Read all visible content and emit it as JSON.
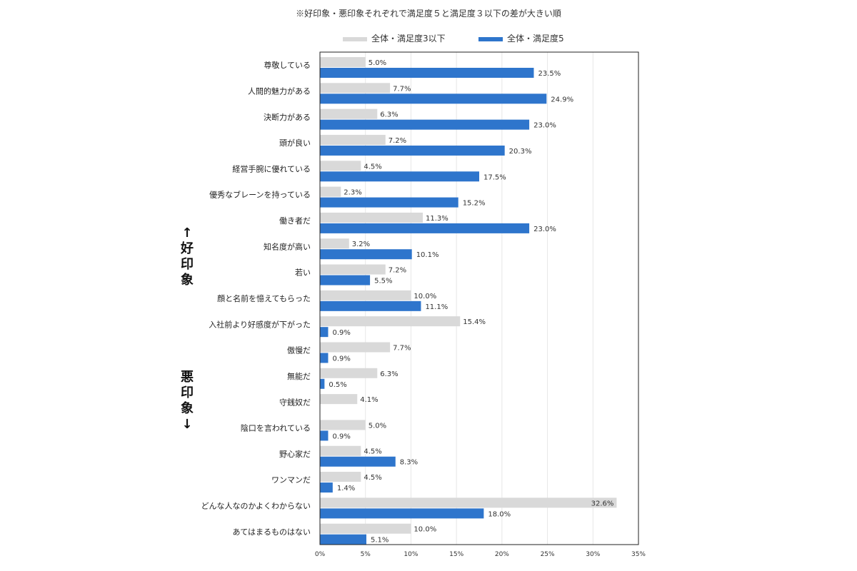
{
  "title": "※好印象・悪印象それぞれで満足度５と満足度３以下の差が大きい順",
  "side_labels": {
    "positive": [
      "↑",
      "好",
      "印",
      "象"
    ],
    "negative": [
      "悪",
      "印",
      "象",
      "↓"
    ]
  },
  "colors": {
    "low": "#d9d9d9",
    "high": "#2e75cc",
    "grid": "#e6e6e6",
    "frame": "#222222"
  },
  "chart_data": {
    "type": "bar",
    "orientation": "horizontal",
    "xlim": [
      0,
      35
    ],
    "x_ticks": [
      "0%",
      "5%",
      "10%",
      "15%",
      "20%",
      "25%",
      "30%",
      "35%"
    ],
    "grid": true,
    "legend_position": "top",
    "categories": [
      "尊敬している",
      "人間的魅力がある",
      "決断力がある",
      "頭が良い",
      "経営手腕に優れている",
      "優秀なブレーンを持っている",
      "働き者だ",
      "知名度が高い",
      "若い",
      "顔と名前を憶えてもらった",
      "入社前より好感度が下がった",
      "傲慢だ",
      "無能だ",
      "守銭奴だ",
      "陰口を言われている",
      "野心家だ",
      "ワンマンだ",
      "どんな人なのかよくわからない",
      "あてはまるものはない"
    ],
    "series": [
      {
        "name": "全体・満足度3以下",
        "values": [
          5.0,
          7.7,
          6.3,
          7.2,
          4.5,
          2.3,
          11.3,
          3.2,
          7.2,
          10.0,
          15.4,
          7.7,
          6.3,
          4.1,
          5.0,
          4.5,
          4.5,
          32.6,
          10.0
        ],
        "labels": [
          "5.0%",
          "7.7%",
          "6.3%",
          "7.2%",
          "4.5%",
          "2.3%",
          "11.3%",
          "3.2%",
          "7.2%",
          "10.0%",
          "15.4%",
          "7.7%",
          "6.3%",
          "4.1%",
          "5.0%",
          "4.5%",
          "4.5%",
          "32.6%",
          "10.0%"
        ]
      },
      {
        "name": "全体・満足度5",
        "values": [
          23.5,
          24.9,
          23.0,
          20.3,
          17.5,
          15.2,
          23.0,
          10.1,
          5.5,
          11.1,
          0.9,
          0.9,
          0.5,
          null,
          0.9,
          8.3,
          1.4,
          18.0,
          5.1
        ],
        "labels": [
          "23.5%",
          "24.9%",
          "23.0%",
          "20.3%",
          "17.5%",
          "15.2%",
          "23.0%",
          "10.1%",
          "5.5%",
          "11.1%",
          "0.9%",
          "0.9%",
          "0.5%",
          null,
          "0.9%",
          "8.3%",
          "1.4%",
          "18.0%",
          "5.1%"
        ]
      }
    ]
  }
}
